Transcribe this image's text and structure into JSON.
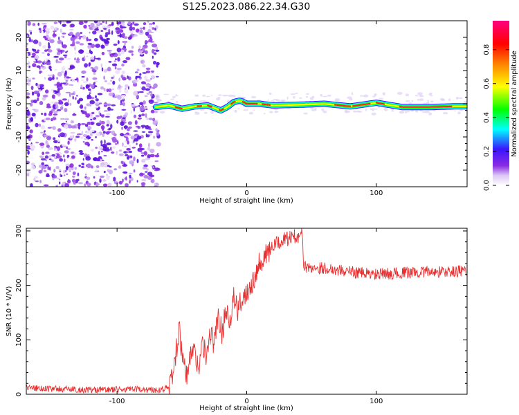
{
  "figure_title": "S125.2023.086.22.34.G30",
  "colors": {
    "snr_line": "#e83030",
    "noise": "#8a2be2",
    "colormap": [
      "#ffffff",
      "#dcc8f5",
      "#8a2be2",
      "#3a14ff",
      "#00ffff",
      "#00ff00",
      "#ffff00",
      "#ff8000",
      "#ff0000",
      "#ff007f"
    ]
  },
  "chart_data": [
    {
      "type": "heatmap",
      "name": "spectrogram",
      "xlabel": "Height of straight line (km)",
      "ylabel": "Frequency (Hz)",
      "xlim": [
        -170,
        170
      ],
      "ylim": [
        -25,
        25
      ],
      "xticks": [
        -100,
        0,
        100
      ],
      "yticks": [
        -20,
        -10,
        0,
        10,
        20
      ],
      "noise_region_x": [
        -170,
        -70
      ],
      "ridge": {
        "x": [
          -70,
          -60,
          -50,
          -40,
          -30,
          -20,
          -15,
          -10,
          -5,
          0,
          10,
          20,
          40,
          60,
          80,
          100,
          120,
          140,
          160,
          170
        ],
        "freq": [
          -1,
          -0.5,
          -1.5,
          -0.8,
          -0.5,
          -2.0,
          -1.0,
          0.5,
          1.0,
          0.0,
          0.0,
          -0.5,
          -0.3,
          0.0,
          -0.8,
          0.3,
          -1.0,
          -1.0,
          -0.8,
          -0.8
        ]
      },
      "colorbar": {
        "label": "Normalized spectral amplitude",
        "ticks": [
          0.0,
          0.2,
          0.4,
          0.6,
          0.8
        ],
        "tick_labels": [
          "0.0",
          "0.2",
          "0.4",
          "0.6",
          "0.8"
        ],
        "range": [
          0,
          0.97
        ]
      }
    },
    {
      "type": "line",
      "name": "snr",
      "xlabel": "Height of straight line (km)",
      "ylabel": "SNR (10 * V/V)",
      "xlim": [
        -170,
        170
      ],
      "ylim": [
        0,
        305
      ],
      "xticks": [
        -100,
        0,
        100
      ],
      "yticks": [
        0,
        100,
        200,
        300
      ],
      "series": [
        {
          "name": "SNR",
          "x": [
            -170,
            -150,
            -120,
            -90,
            -70,
            -60,
            -57,
            -54,
            -52,
            -49,
            -46,
            -43,
            -40,
            -37,
            -34,
            -31,
            -28,
            -25,
            -22,
            -19,
            -16,
            -13,
            -10,
            -7,
            -4,
            0,
            5,
            10,
            15,
            20,
            25,
            30,
            35,
            40,
            42,
            43,
            44,
            46,
            50,
            60,
            80,
            100,
            120,
            140,
            160,
            170
          ],
          "y": [
            12,
            10,
            8,
            9,
            8,
            12,
            40,
            85,
            120,
            55,
            30,
            80,
            75,
            50,
            95,
            65,
            115,
            90,
            150,
            110,
            160,
            135,
            180,
            150,
            175,
            190,
            210,
            245,
            255,
            270,
            280,
            285,
            288,
            292,
            300,
            290,
            235,
            232,
            233,
            232,
            225,
            220,
            223,
            225,
            225,
            228
          ]
        }
      ]
    }
  ]
}
